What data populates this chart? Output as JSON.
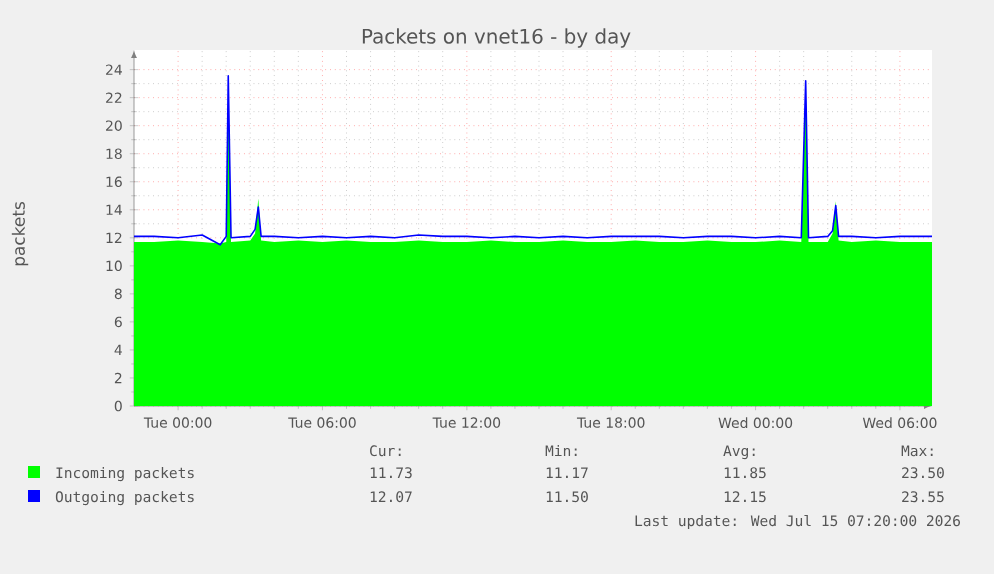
{
  "chart_data": {
    "type": "area",
    "title": "Packets on vnet16 - by day",
    "ylabel": "packets",
    "x": [
      "2026-07-13T22:10",
      "2026-07-13T23:00",
      "2026-07-14T00:00",
      "2026-07-14T01:00",
      "2026-07-14T01:45",
      "2026-07-14T02:00",
      "2026-07-14T02:05",
      "2026-07-14T02:12",
      "2026-07-14T03:00",
      "2026-07-14T03:12",
      "2026-07-14T03:20",
      "2026-07-14T03:27",
      "2026-07-14T04:00",
      "2026-07-14T05:00",
      "2026-07-14T06:00",
      "2026-07-14T07:00",
      "2026-07-14T08:00",
      "2026-07-14T09:00",
      "2026-07-14T10:00",
      "2026-07-14T11:00",
      "2026-07-14T12:00",
      "2026-07-14T13:00",
      "2026-07-14T14:00",
      "2026-07-14T15:00",
      "2026-07-14T16:00",
      "2026-07-14T17:00",
      "2026-07-14T18:00",
      "2026-07-14T19:00",
      "2026-07-14T20:00",
      "2026-07-14T21:00",
      "2026-07-14T22:00",
      "2026-07-14T23:00",
      "2026-07-15T00:00",
      "2026-07-15T01:00",
      "2026-07-15T01:54",
      "2026-07-15T02:05",
      "2026-07-15T02:12",
      "2026-07-15T03:00",
      "2026-07-15T03:12",
      "2026-07-15T03:20",
      "2026-07-15T03:27",
      "2026-07-15T04:00",
      "2026-07-15T05:00",
      "2026-07-15T06:00",
      "2026-07-15T07:00",
      "2026-07-15T07:20"
    ],
    "xlim": [
      "2026-07-13T22:10",
      "2026-07-15T07:20"
    ],
    "ylim": [
      0,
      25.4
    ],
    "xticks": [
      {
        "value": "2026-07-14T00:00",
        "label": "Tue 00:00"
      },
      {
        "value": "2026-07-14T06:00",
        "label": "Tue 06:00"
      },
      {
        "value": "2026-07-14T12:00",
        "label": "Tue 12:00"
      },
      {
        "value": "2026-07-14T18:00",
        "label": "Tue 18:00"
      },
      {
        "value": "2026-07-15T00:00",
        "label": "Wed 00:00"
      },
      {
        "value": "2026-07-15T06:00",
        "label": "Wed 06:00"
      }
    ],
    "yticks": [
      0,
      2,
      4,
      6,
      8,
      10,
      12,
      14,
      16,
      18,
      20,
      22,
      24
    ],
    "grid": true,
    "legend": "bottom",
    "series": [
      {
        "name": "Incoming packets",
        "color": "#00ff00",
        "values": [
          11.7,
          11.7,
          11.8,
          11.7,
          11.6,
          11.7,
          23.5,
          11.7,
          11.8,
          12.3,
          14.8,
          11.8,
          11.7,
          11.8,
          11.7,
          11.8,
          11.7,
          11.7,
          11.8,
          11.7,
          11.7,
          11.8,
          11.7,
          11.7,
          11.8,
          11.7,
          11.7,
          11.8,
          11.7,
          11.7,
          11.8,
          11.7,
          11.7,
          11.8,
          11.7,
          23.1,
          11.7,
          11.7,
          12.3,
          14.6,
          11.8,
          11.7,
          11.8,
          11.7,
          11.7,
          11.7
        ]
      },
      {
        "name": "Outgoing packets",
        "type": "line",
        "color": "#0000ff",
        "values": [
          12.1,
          12.1,
          12.0,
          12.2,
          11.5,
          12.1,
          23.55,
          12.0,
          12.1,
          12.6,
          14.2,
          12.1,
          12.1,
          12.0,
          12.1,
          12.0,
          12.1,
          12.0,
          12.2,
          12.1,
          12.1,
          12.0,
          12.1,
          12.0,
          12.1,
          12.0,
          12.1,
          12.1,
          12.1,
          12.0,
          12.1,
          12.1,
          12.0,
          12.1,
          12.0,
          23.2,
          12.0,
          12.1,
          12.5,
          14.3,
          12.1,
          12.1,
          12.0,
          12.1,
          12.1,
          12.1
        ]
      }
    ],
    "annotations": [
      "Cur:",
      "Min:",
      "Avg:",
      "Max:",
      "11.73",
      "11.17",
      "11.85",
      "23.50",
      "12.07",
      "11.50",
      "12.15",
      "23.55",
      "Last update: Wed Jul 15 07:20:00 2026"
    ]
  }
}
